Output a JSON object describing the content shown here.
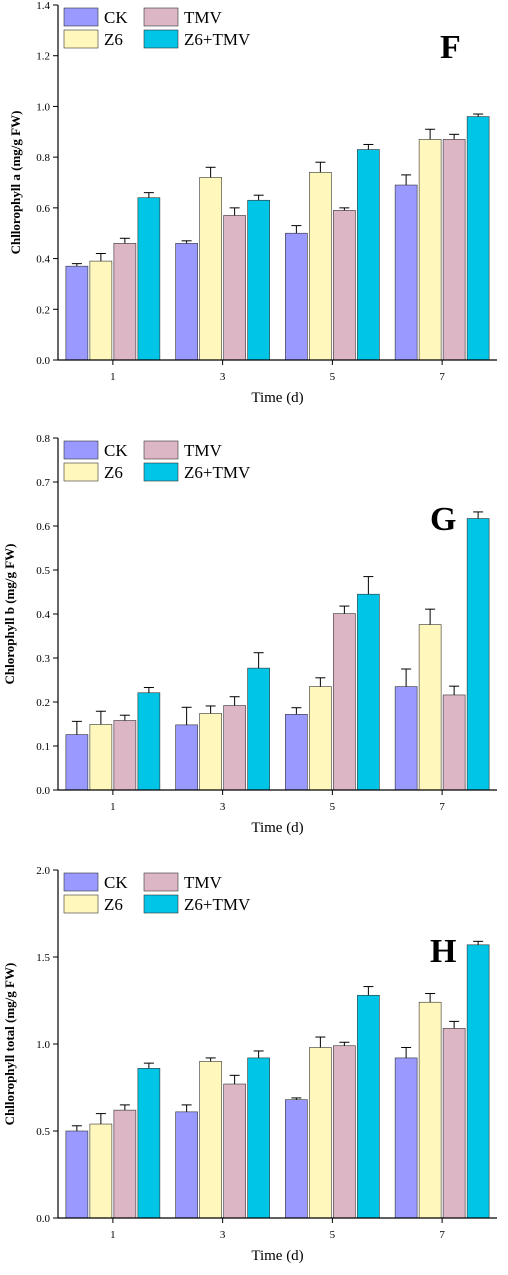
{
  "colors": {
    "CK": "#9999ff",
    "TMV": "#ddb6c5",
    "Z6": "#fff7bc",
    "Z6+TMV": "#00c5e6",
    "axis": "#000000"
  },
  "chart_data": [
    {
      "type": "bar",
      "panel_label": "F",
      "categories": [
        "1",
        "3",
        "5",
        "7"
      ],
      "xlabel": "Time (d)",
      "ylabel": "Chllorophyll a (mg/g FW)",
      "ylim": [
        0,
        1.4
      ],
      "yticks": [
        "0.0",
        "0.2",
        "0.4",
        "0.6",
        "0.8",
        "1.0",
        "1.2",
        "1.4"
      ],
      "legend_position": "top-left",
      "series": [
        {
          "name": "CK",
          "values": [
            0.37,
            0.46,
            0.5,
            0.69
          ],
          "errors": [
            0.01,
            0.01,
            0.03,
            0.04
          ]
        },
        {
          "name": "Z6",
          "values": [
            0.39,
            0.72,
            0.74,
            0.87
          ],
          "errors": [
            0.03,
            0.04,
            0.04,
            0.04
          ]
        },
        {
          "name": "TMV",
          "values": [
            0.46,
            0.57,
            0.59,
            0.87
          ],
          "errors": [
            0.02,
            0.03,
            0.01,
            0.02
          ]
        },
        {
          "name": "Z6+TMV",
          "values": [
            0.64,
            0.63,
            0.83,
            0.96
          ],
          "errors": [
            0.02,
            0.02,
            0.02,
            0.01
          ]
        }
      ]
    },
    {
      "type": "bar",
      "panel_label": "G",
      "categories": [
        "1",
        "3",
        "5",
        "7"
      ],
      "xlabel": "Time (d)",
      "ylabel": "Chlorophyll b (mg/g FW)",
      "ylim": [
        0,
        0.8
      ],
      "yticks": [
        "0.0",
        "0.1",
        "0.2",
        "0.3",
        "0.4",
        "0.5",
        "0.6",
        "0.7",
        "0.8"
      ],
      "legend_position": "top-left",
      "series": [
        {
          "name": "CK",
          "values": [
            0.126,
            0.148,
            0.172,
            0.235
          ],
          "errors": [
            0.03,
            0.04,
            0.015,
            0.04
          ]
        },
        {
          "name": "Z6",
          "values": [
            0.149,
            0.174,
            0.235,
            0.376
          ],
          "errors": [
            0.03,
            0.017,
            0.02,
            0.035
          ]
        },
        {
          "name": "TMV",
          "values": [
            0.158,
            0.192,
            0.401,
            0.216
          ],
          "errors": [
            0.012,
            0.02,
            0.017,
            0.02
          ]
        },
        {
          "name": "Z6+TMV",
          "values": [
            0.221,
            0.277,
            0.445,
            0.617
          ],
          "errors": [
            0.012,
            0.035,
            0.04,
            0.015
          ]
        }
      ]
    },
    {
      "type": "bar",
      "panel_label": "H",
      "categories": [
        "1",
        "3",
        "5",
        "7"
      ],
      "xlabel": "Time (d)",
      "ylabel": "Chllorophyll total (mg/g FW)",
      "ylim": [
        0,
        2.0
      ],
      "yticks": [
        "0.0",
        "0.5",
        "1.0",
        "1.5",
        "2.0"
      ],
      "legend_position": "top-left",
      "series": [
        {
          "name": "CK",
          "values": [
            0.5,
            0.61,
            0.68,
            0.92
          ],
          "errors": [
            0.03,
            0.04,
            0.01,
            0.06
          ]
        },
        {
          "name": "Z6",
          "values": [
            0.54,
            0.9,
            0.98,
            1.24
          ],
          "errors": [
            0.06,
            0.02,
            0.06,
            0.05
          ]
        },
        {
          "name": "TMV",
          "values": [
            0.62,
            0.77,
            0.99,
            1.09
          ],
          "errors": [
            0.03,
            0.05,
            0.02,
            0.04
          ]
        },
        {
          "name": "Z6+TMV",
          "values": [
            0.86,
            0.92,
            1.28,
            1.57
          ],
          "errors": [
            0.03,
            0.04,
            0.05,
            0.02
          ]
        }
      ]
    }
  ]
}
